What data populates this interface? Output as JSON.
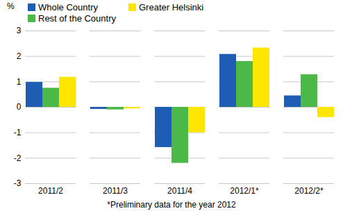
{
  "chart_data": {
    "type": "bar",
    "categories": [
      "2011/2",
      "2011/3",
      "2011/4",
      "2012/1*",
      "2012/2*"
    ],
    "series": [
      {
        "name": "Whole Country",
        "color": "#1f5db5",
        "values": [
          0.98,
          -0.08,
          -1.58,
          2.08,
          0.45
        ]
      },
      {
        "name": "Rest of the Country",
        "color": "#4cb847",
        "values": [
          0.75,
          -0.1,
          -2.2,
          1.8,
          1.28
        ]
      },
      {
        "name": "Greater Helsinki",
        "color": "#ffe600",
        "values": [
          1.18,
          -0.06,
          -1.0,
          2.33,
          -0.4
        ]
      }
    ],
    "y_label": "%",
    "caption": "*Preliminary data for the year 2012",
    "ylim": [
      -3,
      3
    ],
    "yticks": [
      -3,
      -2,
      -1,
      0,
      1,
      2,
      3
    ],
    "grid": true,
    "legend": "top"
  }
}
